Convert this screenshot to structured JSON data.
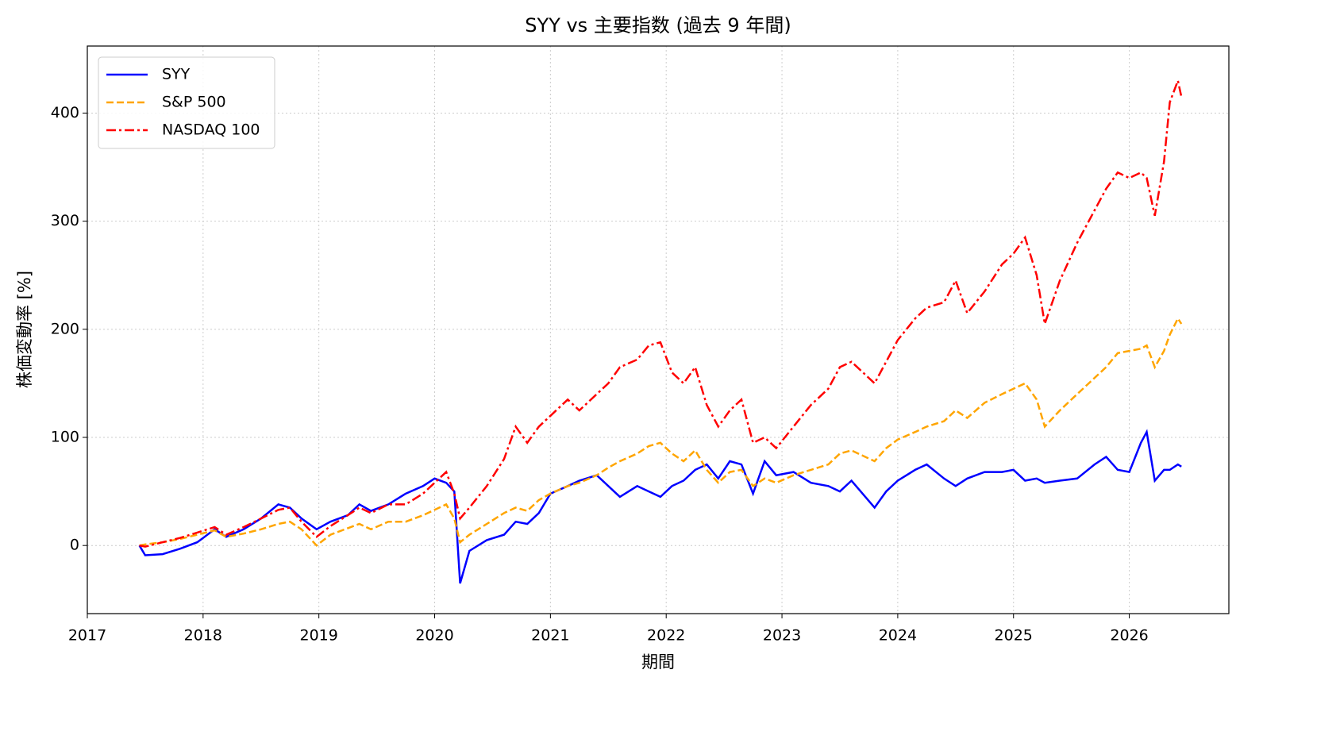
{
  "chart_data": {
    "type": "line",
    "title": "SYY vs 主要指数 (過去 9 年間)",
    "x_label": "期間",
    "y_label": "株価変動率 [%]",
    "x": [
      2017.45,
      2017.5,
      2017.65,
      2017.8,
      2017.95,
      2018.1,
      2018.2,
      2018.35,
      2018.5,
      2018.65,
      2018.75,
      2018.85,
      2018.98,
      2019.1,
      2019.25,
      2019.35,
      2019.45,
      2019.6,
      2019.75,
      2019.9,
      2020.0,
      2020.1,
      2020.17,
      2020.22,
      2020.3,
      2020.45,
      2020.6,
      2020.7,
      2020.8,
      2020.9,
      2021.0,
      2021.15,
      2021.25,
      2021.4,
      2021.5,
      2021.6,
      2021.75,
      2021.85,
      2021.95,
      2022.05,
      2022.15,
      2022.25,
      2022.35,
      2022.45,
      2022.55,
      2022.65,
      2022.75,
      2022.85,
      2022.95,
      2023.1,
      2023.25,
      2023.4,
      2023.5,
      2023.6,
      2023.8,
      2023.9,
      2024.0,
      2024.15,
      2024.25,
      2024.4,
      2024.5,
      2024.6,
      2024.75,
      2024.9,
      2025.0,
      2025.1,
      2025.2,
      2025.27,
      2025.4,
      2025.55,
      2025.7,
      2025.8,
      2025.9,
      2026.0,
      2026.1,
      2026.15,
      2026.22,
      2026.3,
      2026.35,
      2026.42,
      2026.45
    ],
    "series": [
      {
        "name": "SYY",
        "color": "#0000ff",
        "linestyle": "solid",
        "values": [
          0,
          -9,
          -8,
          -3,
          3,
          15,
          8,
          15,
          25,
          38,
          35,
          25,
          15,
          22,
          28,
          38,
          32,
          38,
          48,
          55,
          62,
          58,
          50,
          -35,
          -5,
          5,
          10,
          22,
          20,
          30,
          48,
          55,
          60,
          65,
          55,
          45,
          55,
          50,
          45,
          55,
          60,
          70,
          75,
          62,
          78,
          75,
          48,
          78,
          65,
          68,
          58,
          55,
          50,
          60,
          35,
          50,
          60,
          70,
          75,
          62,
          55,
          62,
          68,
          68,
          70,
          60,
          62,
          58,
          60,
          62,
          75,
          82,
          70,
          68,
          95,
          105,
          60,
          70,
          70,
          75,
          73
        ]
      },
      {
        "name": "S&P 500",
        "color": "#ffa500",
        "linestyle": "dashed",
        "values": [
          0,
          1,
          3,
          6,
          10,
          14,
          8,
          11,
          15,
          20,
          22,
          15,
          0,
          10,
          16,
          20,
          15,
          22,
          22,
          28,
          33,
          38,
          25,
          3,
          10,
          20,
          30,
          35,
          32,
          42,
          48,
          55,
          58,
          65,
          72,
          78,
          85,
          92,
          95,
          85,
          78,
          88,
          70,
          58,
          68,
          70,
          55,
          62,
          58,
          65,
          70,
          75,
          85,
          88,
          78,
          90,
          98,
          105,
          110,
          115,
          125,
          118,
          132,
          140,
          145,
          150,
          135,
          110,
          125,
          140,
          155,
          165,
          178,
          180,
          182,
          185,
          165,
          180,
          195,
          210,
          205
        ]
      },
      {
        "name": "NASDAQ 100",
        "color": "#ff0000",
        "linestyle": "dashdot",
        "values": [
          0,
          -1,
          3,
          7,
          12,
          17,
          10,
          17,
          25,
          33,
          35,
          22,
          8,
          18,
          28,
          35,
          30,
          38,
          38,
          48,
          58,
          68,
          48,
          25,
          35,
          55,
          80,
          110,
          95,
          110,
          120,
          135,
          125,
          140,
          150,
          165,
          172,
          185,
          188,
          160,
          150,
          165,
          130,
          110,
          125,
          135,
          95,
          100,
          90,
          110,
          130,
          145,
          165,
          170,
          150,
          170,
          190,
          210,
          220,
          225,
          245,
          215,
          235,
          260,
          270,
          285,
          250,
          205,
          245,
          280,
          310,
          330,
          345,
          340,
          345,
          340,
          305,
          355,
          410,
          430,
          415
        ]
      }
    ],
    "xlim": [
      2017,
      2026.86
    ],
    "xticks": [
      2017,
      2018,
      2019,
      2020,
      2021,
      2022,
      2023,
      2024,
      2025,
      2026
    ],
    "ylim": [
      -63,
      462
    ],
    "yticks": [
      0,
      100,
      200,
      300,
      400
    ],
    "grid": true,
    "legend": "upper left"
  }
}
